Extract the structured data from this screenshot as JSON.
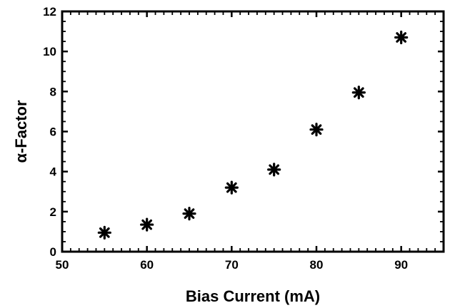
{
  "chart_data": {
    "type": "scatter",
    "title": "",
    "xlabel": "Bias Current (mA)",
    "ylabel": "α-Factor",
    "xlim": [
      50,
      95
    ],
    "ylim": [
      0,
      12
    ],
    "x_ticks": [
      "50",
      "60",
      "70",
      "80",
      "90"
    ],
    "y_ticks": [
      "0",
      "2",
      "4",
      "6",
      "8",
      "10",
      "12"
    ],
    "grid": false,
    "marker": "asterisk",
    "marker_color": "#000000",
    "series": [
      {
        "x": [
          55,
          60,
          65,
          70,
          75,
          80,
          85,
          90
        ],
        "y": [
          0.95,
          1.35,
          1.9,
          3.2,
          4.1,
          6.1,
          7.95,
          10.7
        ]
      }
    ]
  }
}
